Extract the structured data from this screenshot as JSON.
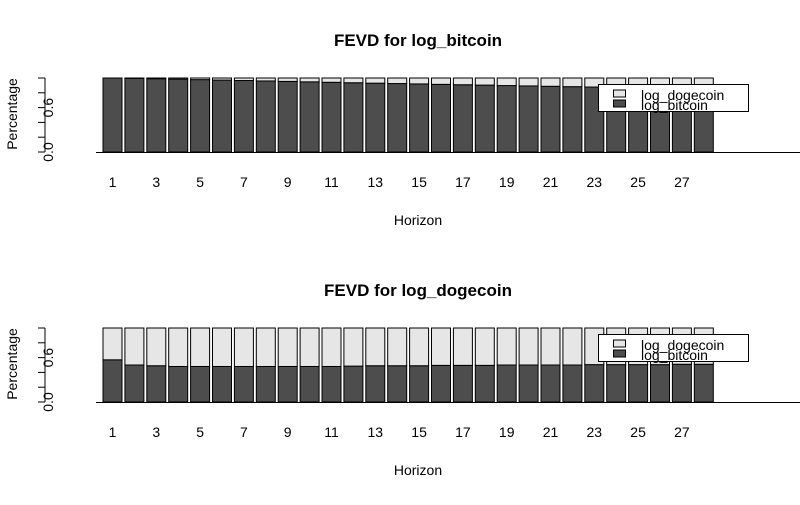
{
  "chart_data": [
    {
      "type": "bar",
      "stacked": true,
      "title": "FEVD for log_bitcoin",
      "xlabel": "Horizon",
      "ylabel": "Percentage",
      "ylim": [
        0,
        1
      ],
      "yticks": [
        "0.0",
        "0.6"
      ],
      "xtick_labels": [
        "1",
        "3",
        "5",
        "7",
        "9",
        "11",
        "13",
        "15",
        "17",
        "19",
        "21",
        "23",
        "25",
        "27"
      ],
      "categories": [
        "1",
        "2",
        "3",
        "4",
        "5",
        "6",
        "7",
        "8",
        "9",
        "10",
        "11",
        "12",
        "13",
        "14",
        "15",
        "16",
        "17",
        "18",
        "19",
        "20",
        "21",
        "22",
        "23",
        "24",
        "25",
        "26",
        "27",
        "28"
      ],
      "legend": {
        "position": "right",
        "entries": [
          "log_dogecoin",
          "log_bitcoin"
        ]
      },
      "series": [
        {
          "name": "log_bitcoin",
          "color": "#4d4d4d",
          "values": [
            1.0,
            0.996,
            0.99,
            0.985,
            0.978,
            0.972,
            0.966,
            0.96,
            0.954,
            0.948,
            0.942,
            0.936,
            0.93,
            0.925,
            0.92,
            0.914,
            0.909,
            0.904,
            0.898,
            0.893,
            0.888,
            0.883,
            0.878,
            0.873,
            0.868,
            0.863,
            0.858,
            0.853
          ]
        },
        {
          "name": "log_dogecoin",
          "color": "#e6e6e6",
          "values": [
            0.0,
            0.004,
            0.01,
            0.015,
            0.022,
            0.028,
            0.034,
            0.04,
            0.046,
            0.052,
            0.058,
            0.064,
            0.07,
            0.075,
            0.08,
            0.086,
            0.091,
            0.096,
            0.102,
            0.107,
            0.112,
            0.117,
            0.122,
            0.127,
            0.132,
            0.137,
            0.142,
            0.147
          ]
        }
      ]
    },
    {
      "type": "bar",
      "stacked": true,
      "title": "FEVD for log_dogecoin",
      "xlabel": "Horizon",
      "ylabel": "Percentage",
      "ylim": [
        0,
        1
      ],
      "yticks": [
        "0.0",
        "0.6"
      ],
      "xtick_labels": [
        "1",
        "3",
        "5",
        "7",
        "9",
        "11",
        "13",
        "15",
        "17",
        "19",
        "21",
        "23",
        "25",
        "27"
      ],
      "categories": [
        "1",
        "2",
        "3",
        "4",
        "5",
        "6",
        "7",
        "8",
        "9",
        "10",
        "11",
        "12",
        "13",
        "14",
        "15",
        "16",
        "17",
        "18",
        "19",
        "20",
        "21",
        "22",
        "23",
        "24",
        "25",
        "26",
        "27",
        "28"
      ],
      "legend": {
        "position": "right",
        "entries": [
          "log_dogecoin",
          "log_bitcoin"
        ]
      },
      "series": [
        {
          "name": "log_bitcoin",
          "color": "#4d4d4d",
          "values": [
            0.57,
            0.5,
            0.49,
            0.48,
            0.48,
            0.48,
            0.48,
            0.48,
            0.48,
            0.48,
            0.48,
            0.485,
            0.49,
            0.49,
            0.49,
            0.495,
            0.495,
            0.495,
            0.5,
            0.5,
            0.5,
            0.5,
            0.505,
            0.505,
            0.505,
            0.505,
            0.51,
            0.51
          ]
        },
        {
          "name": "log_dogecoin",
          "color": "#e6e6e6",
          "values": [
            0.43,
            0.5,
            0.51,
            0.52,
            0.52,
            0.52,
            0.52,
            0.52,
            0.52,
            0.52,
            0.52,
            0.515,
            0.51,
            0.51,
            0.51,
            0.505,
            0.505,
            0.505,
            0.5,
            0.5,
            0.5,
            0.5,
            0.495,
            0.495,
            0.495,
            0.495,
            0.49,
            0.49
          ]
        }
      ]
    }
  ]
}
